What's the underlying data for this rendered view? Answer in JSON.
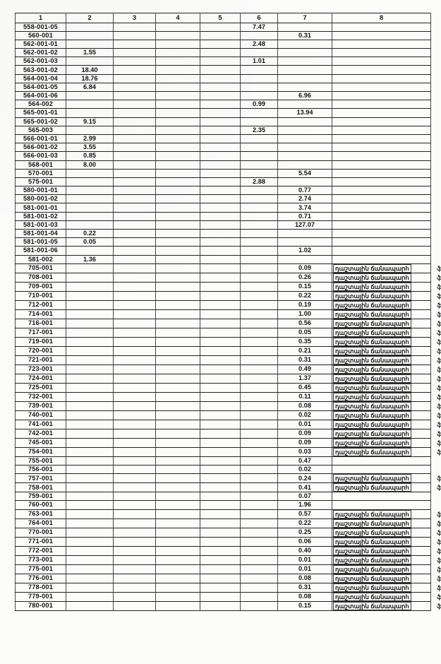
{
  "document": {
    "columns": [
      "1",
      "2",
      "3",
      "4",
      "5",
      "6",
      "7",
      "8"
    ],
    "road_label": "դաշտային ճանապարհ",
    "edge_fragment": "ֆ",
    "rows": [
      {
        "id": "558-001-05",
        "c2": "",
        "c6": "7.47",
        "c7": "",
        "road": false
      },
      {
        "id": "560-001",
        "c2": "",
        "c6": "",
        "c7": "0.31",
        "road": false
      },
      {
        "id": "562-001-01",
        "c2": "",
        "c6": "2.48",
        "c7": "",
        "road": false
      },
      {
        "id": "562-001-02",
        "c2": "1.55",
        "c6": "",
        "c7": "",
        "road": false
      },
      {
        "id": "562-001-03",
        "c2": "",
        "c6": "1.01",
        "c7": "",
        "road": false
      },
      {
        "id": "563-001-02",
        "c2": "18.40",
        "c6": "",
        "c7": "",
        "road": false
      },
      {
        "id": "564-001-04",
        "c2": "18.76",
        "c6": "",
        "c7": "",
        "road": false
      },
      {
        "id": "564-001-05",
        "c2": "6.84",
        "c6": "",
        "c7": "",
        "road": false
      },
      {
        "id": "564-001-06",
        "c2": "",
        "c6": "",
        "c7": "6.96",
        "road": false
      },
      {
        "id": "564-002",
        "c2": "",
        "c6": "0.99",
        "c7": "",
        "road": false
      },
      {
        "id": "565-001-01",
        "c2": "",
        "c6": "",
        "c7": "13.94",
        "road": false
      },
      {
        "id": "565-001-02",
        "c2": "9.15",
        "c6": "",
        "c7": "",
        "road": false
      },
      {
        "id": "565-003",
        "c2": "",
        "c6": "2.35",
        "c7": "",
        "road": false
      },
      {
        "id": "566-001-01",
        "c2": "2.99",
        "c6": "",
        "c7": "",
        "road": false
      },
      {
        "id": "566-001-02",
        "c2": "3.55",
        "c6": "",
        "c7": "",
        "road": false
      },
      {
        "id": "566-001-03",
        "c2": "0.85",
        "c6": "",
        "c7": "",
        "road": false
      },
      {
        "id": "568-001",
        "c2": "8.00",
        "c6": "",
        "c7": "",
        "road": false
      },
      {
        "id": "570-001",
        "c2": "",
        "c6": "",
        "c7": "5.54",
        "road": false
      },
      {
        "id": "575-001",
        "c2": "",
        "c6": "2.88",
        "c7": "",
        "road": false
      },
      {
        "id": "580-001-01",
        "c2": "",
        "c6": "",
        "c7": "0.77",
        "road": false
      },
      {
        "id": "580-001-02",
        "c2": "",
        "c6": "",
        "c7": "2.74",
        "road": false
      },
      {
        "id": "581-001-01",
        "c2": "",
        "c6": "",
        "c7": "3.74",
        "road": false
      },
      {
        "id": "581-001-02",
        "c2": "",
        "c6": "",
        "c7": "0.71",
        "road": false
      },
      {
        "id": "581-001-03",
        "c2": "",
        "c6": "",
        "c7": "127.07",
        "road": false
      },
      {
        "id": "581-001-04",
        "c2": "0.22",
        "c6": "",
        "c7": "",
        "road": false
      },
      {
        "id": "581-001-05",
        "c2": "0.05",
        "c6": "",
        "c7": "",
        "road": false
      },
      {
        "id": "581-001-06",
        "c2": "",
        "c6": "",
        "c7": "1.02",
        "road": false
      },
      {
        "id": "581-002",
        "c2": "1.36",
        "c6": "",
        "c7": "",
        "road": false
      },
      {
        "id": "705-001",
        "c2": "",
        "c6": "",
        "c7": "0.09",
        "road": true
      },
      {
        "id": "708-001",
        "c2": "",
        "c6": "",
        "c7": "0.26",
        "road": true
      },
      {
        "id": "709-001",
        "c2": "",
        "c6": "",
        "c7": "0.15",
        "road": true
      },
      {
        "id": "710-001",
        "c2": "",
        "c6": "",
        "c7": "0.22",
        "road": true
      },
      {
        "id": "712-001",
        "c2": "",
        "c6": "",
        "c7": "0.19",
        "road": true
      },
      {
        "id": "714-001",
        "c2": "",
        "c6": "",
        "c7": "1.00",
        "road": true
      },
      {
        "id": "716-001",
        "c2": "",
        "c6": "",
        "c7": "0.56",
        "road": true
      },
      {
        "id": "717-001",
        "c2": "",
        "c6": "",
        "c7": "0.05",
        "road": true
      },
      {
        "id": "719-001",
        "c2": "",
        "c6": "",
        "c7": "0.35",
        "road": true
      },
      {
        "id": "720-001",
        "c2": "",
        "c6": "",
        "c7": "0.21",
        "road": true
      },
      {
        "id": "721-001",
        "c2": "",
        "c6": "",
        "c7": "0.31",
        "road": true
      },
      {
        "id": "723-001",
        "c2": "",
        "c6": "",
        "c7": "0.49",
        "road": true
      },
      {
        "id": "724-001",
        "c2": "",
        "c6": "",
        "c7": "1.37",
        "road": true
      },
      {
        "id": "725-001",
        "c2": "",
        "c6": "",
        "c7": "0.45",
        "road": true
      },
      {
        "id": "732-001",
        "c2": "",
        "c6": "",
        "c7": "0.11",
        "road": true
      },
      {
        "id": "739-001",
        "c2": "",
        "c6": "",
        "c7": "0.08",
        "road": true
      },
      {
        "id": "740-001",
        "c2": "",
        "c6": "",
        "c7": "0.02",
        "road": true
      },
      {
        "id": "741-001",
        "c2": "",
        "c6": "",
        "c7": "0.01",
        "road": true
      },
      {
        "id": "742-001",
        "c2": "",
        "c6": "",
        "c7": "0.09",
        "road": true
      },
      {
        "id": "745-001",
        "c2": "",
        "c6": "",
        "c7": "0.09",
        "road": true
      },
      {
        "id": "754-001",
        "c2": "",
        "c6": "",
        "c7": "0.03",
        "road": true
      },
      {
        "id": "755-001",
        "c2": "",
        "c6": "",
        "c7": "0.47",
        "road": false
      },
      {
        "id": "756-001",
        "c2": "",
        "c6": "",
        "c7": "0.02",
        "road": false
      },
      {
        "id": "757-001",
        "c2": "",
        "c6": "",
        "c7": "0.24",
        "road": true
      },
      {
        "id": "758-001",
        "c2": "",
        "c6": "",
        "c7": "0.41",
        "road": true
      },
      {
        "id": "759-001",
        "c2": "",
        "c6": "",
        "c7": "0.07",
        "road": false
      },
      {
        "id": "760-001",
        "c2": "",
        "c6": "",
        "c7": "1.96",
        "road": false
      },
      {
        "id": "763-001",
        "c2": "",
        "c6": "",
        "c7": "0.57",
        "road": true
      },
      {
        "id": "764-001",
        "c2": "",
        "c6": "",
        "c7": "0.22",
        "road": true
      },
      {
        "id": "770-001",
        "c2": "",
        "c6": "",
        "c7": "0.25",
        "road": true
      },
      {
        "id": "771-001",
        "c2": "",
        "c6": "",
        "c7": "0.06",
        "road": true
      },
      {
        "id": "772-001",
        "c2": "",
        "c6": "",
        "c7": "0.40",
        "road": true
      },
      {
        "id": "773-001",
        "c2": "",
        "c6": "",
        "c7": "0.01",
        "road": true
      },
      {
        "id": "775-001",
        "c2": "",
        "c6": "",
        "c7": "0.01",
        "road": true
      },
      {
        "id": "776-001",
        "c2": "",
        "c6": "",
        "c7": "0.08",
        "road": true
      },
      {
        "id": "778-001",
        "c2": "",
        "c6": "",
        "c7": "0.31",
        "road": true
      },
      {
        "id": "779-001",
        "c2": "",
        "c6": "",
        "c7": "0.08",
        "road": true
      },
      {
        "id": "780-001",
        "c2": "",
        "c6": "",
        "c7": "0.15",
        "road": true
      }
    ]
  }
}
